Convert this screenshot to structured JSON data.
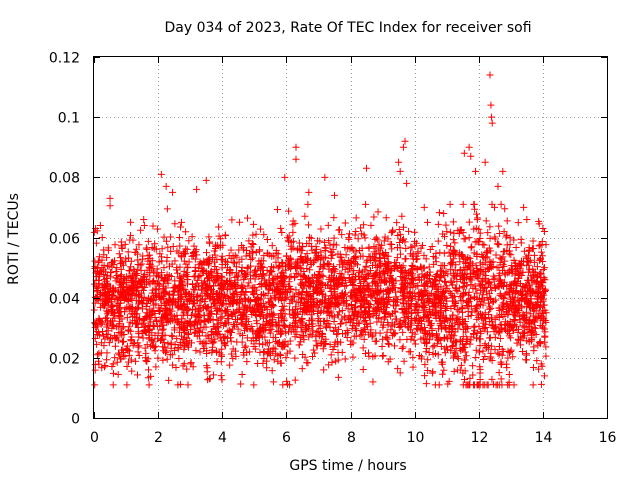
{
  "chart_data": {
    "type": "scatter",
    "title": "Day 034 of 2023, Rate Of TEC Index for receiver sofi",
    "xlabel": "GPS time / hours",
    "ylabel": "ROTI / TECUs",
    "xlim": [
      0,
      16
    ],
    "ylim": [
      0,
      0.12
    ],
    "xticks": [
      0,
      2,
      4,
      6,
      8,
      10,
      12,
      14,
      16
    ],
    "yticks": [
      0,
      0.02,
      0.04,
      0.06,
      0.08,
      0.1,
      0.12
    ],
    "xtick_labels": [
      "0",
      "2",
      "4",
      "6",
      "8",
      "10",
      "12",
      "14",
      "16"
    ],
    "ytick_labels": [
      "0",
      "0.02",
      "0.04",
      "0.06",
      "0.08",
      "0.1",
      "0.12"
    ],
    "grid": true,
    "marker": "+",
    "color": "#ff0000",
    "x_data_range": [
      0,
      14.1
    ],
    "typical_range": [
      0.015,
      0.065
    ],
    "central_value": 0.038,
    "points": [
      [
        12.35,
        0.114
      ],
      [
        12.38,
        0.104
      ],
      [
        12.4,
        0.1
      ],
      [
        12.42,
        0.098
      ],
      [
        9.7,
        0.092
      ],
      [
        9.65,
        0.09
      ],
      [
        11.7,
        0.09
      ],
      [
        6.3,
        0.09
      ],
      [
        11.55,
        0.088
      ],
      [
        11.75,
        0.087
      ],
      [
        6.3,
        0.086
      ],
      [
        9.5,
        0.085
      ],
      [
        12.2,
        0.085
      ],
      [
        8.5,
        0.083
      ],
      [
        9.55,
        0.082
      ],
      [
        11.9,
        0.082
      ],
      [
        12.75,
        0.082
      ],
      [
        2.1,
        0.081
      ],
      [
        5.95,
        0.08
      ],
      [
        7.2,
        0.08
      ],
      [
        3.5,
        0.079
      ],
      [
        9.75,
        0.078
      ],
      [
        2.25,
        0.077
      ],
      [
        12.6,
        0.077
      ],
      [
        3.2,
        0.076
      ],
      [
        6.7,
        0.075
      ],
      [
        2.45,
        0.075
      ],
      [
        7.5,
        0.074
      ],
      [
        0.5,
        0.073
      ],
      [
        13.4,
        0.07
      ],
      [
        10.3,
        0.07
      ],
      [
        13.5,
        0.066
      ],
      [
        0.05,
        0.063
      ],
      [
        0.2,
        0.064
      ],
      [
        14.0,
        0.063
      ],
      [
        14.05,
        0.062
      ],
      [
        1.55,
        0.066
      ],
      [
        0.6,
        0.018
      ],
      [
        1.7,
        0.016
      ],
      [
        3.6,
        0.013
      ],
      [
        5.6,
        0.012
      ],
      [
        6.1,
        0.011
      ],
      [
        8.7,
        0.012
      ],
      [
        13.1,
        0.011
      ],
      [
        12.7,
        0.013
      ],
      [
        14.05,
        0.014
      ],
      [
        13.95,
        0.018
      ],
      [
        13.9,
        0.025
      ],
      [
        14.0,
        0.03
      ],
      [
        14.1,
        0.035
      ],
      [
        14.0,
        0.045
      ],
      [
        14.05,
        0.05
      ]
    ]
  }
}
